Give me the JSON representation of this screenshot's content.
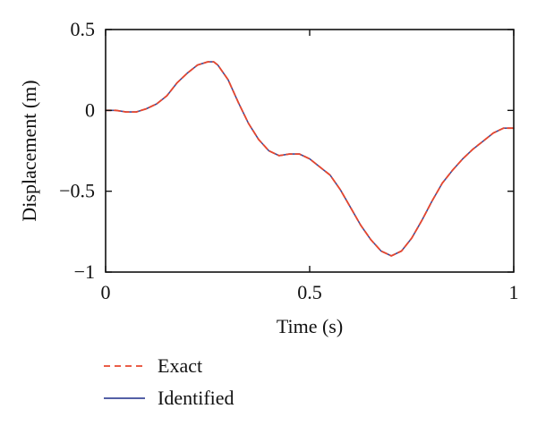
{
  "chart_data": {
    "type": "line",
    "xlabel": "Time (s)",
    "ylabel": "Displacement (m)",
    "xlim": [
      0,
      1
    ],
    "ylim": [
      -1,
      0.5
    ],
    "grid": false,
    "legend_position": "bottom-left",
    "x_ticks": [
      {
        "value": 0,
        "label": "0"
      },
      {
        "value": 0.5,
        "label": "0.5"
      },
      {
        "value": 1,
        "label": "1"
      }
    ],
    "y_ticks": [
      {
        "value": 0.5,
        "label": "0.5"
      },
      {
        "value": 0,
        "label": "0"
      },
      {
        "value": -0.5,
        "label": "−0.5"
      },
      {
        "value": -1,
        "label": "−1"
      }
    ],
    "x": [
      0,
      0.025,
      0.05,
      0.075,
      0.1,
      0.125,
      0.15,
      0.175,
      0.2,
      0.225,
      0.25,
      0.265,
      0.275,
      0.3,
      0.325,
      0.35,
      0.375,
      0.4,
      0.425,
      0.45,
      0.475,
      0.5,
      0.525,
      0.55,
      0.575,
      0.6,
      0.625,
      0.65,
      0.675,
      0.7,
      0.725,
      0.75,
      0.775,
      0.8,
      0.825,
      0.85,
      0.875,
      0.9,
      0.925,
      0.95,
      0.975,
      1
    ],
    "series": [
      {
        "name": "Exact",
        "color": "#e8472e",
        "dash": true,
        "values": [
          0.0,
          0.0,
          -0.01,
          -0.01,
          0.01,
          0.04,
          0.09,
          0.17,
          0.23,
          0.28,
          0.3,
          0.3,
          0.28,
          0.19,
          0.05,
          -0.08,
          -0.18,
          -0.25,
          -0.28,
          -0.27,
          -0.27,
          -0.3,
          -0.35,
          -0.4,
          -0.49,
          -0.6,
          -0.71,
          -0.8,
          -0.87,
          -0.9,
          -0.87,
          -0.79,
          -0.68,
          -0.56,
          -0.45,
          -0.37,
          -0.3,
          -0.24,
          -0.19,
          -0.14,
          -0.11,
          -0.11
        ]
      },
      {
        "name": "Identified",
        "color": "#3b4a9a",
        "dash": false,
        "values": [
          0.0,
          0.0,
          -0.01,
          -0.01,
          0.01,
          0.04,
          0.09,
          0.17,
          0.23,
          0.28,
          0.3,
          0.3,
          0.28,
          0.19,
          0.05,
          -0.08,
          -0.18,
          -0.25,
          -0.28,
          -0.27,
          -0.27,
          -0.3,
          -0.35,
          -0.4,
          -0.49,
          -0.6,
          -0.71,
          -0.8,
          -0.87,
          -0.9,
          -0.87,
          -0.79,
          -0.68,
          -0.56,
          -0.45,
          -0.37,
          -0.3,
          -0.24,
          -0.19,
          -0.14,
          -0.11,
          -0.11
        ]
      }
    ]
  }
}
